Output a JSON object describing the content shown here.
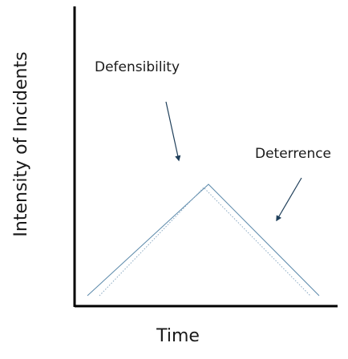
{
  "diagram": {
    "y_axis_label": "Intensity of Incidents",
    "x_axis_label": "Time",
    "annotations": {
      "defensibility": "Defensibility",
      "deterrence": "Deterrence"
    }
  }
}
